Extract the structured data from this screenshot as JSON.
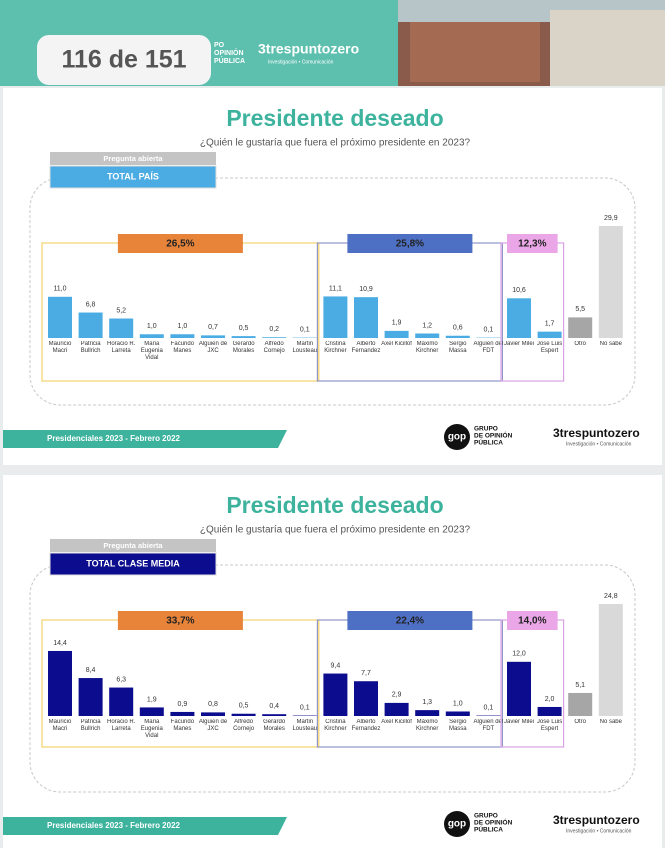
{
  "header": {
    "page_counter": "116 de 151",
    "logo_left": [
      "PO",
      "OPINIÓN",
      "PÚBLICA"
    ],
    "logo_right": "3trespuntozero",
    "logo_right_sub": "Investigación • Comunicación"
  },
  "chart_data": [
    {
      "type": "bar",
      "title": "Presidente deseado",
      "subtitle": "¿Quién le gustaría que fuera el próximo presidente en 2023?",
      "tag": "Pregunta abierta",
      "segment": "TOTAL PAÍS",
      "segment_color": "#4aace3",
      "groups": [
        {
          "total": {
            "value": 26.5,
            "label": "26,5%"
          },
          "total_color": "#e8833a",
          "frame_color": "#f3d36b",
          "color": "#4aace3",
          "categories": [
            "Mauricio Macri",
            "Patricia Bullrich",
            "Horacio R. Larreta",
            "Maria Eugenia Vidal",
            "Facundo Manes",
            "Alguien de JXC",
            "Gerardo Morales",
            "Alfredo Cornejo",
            "Martin Lousteau"
          ],
          "values": [
            11.0,
            6.8,
            5.2,
            1.0,
            1.0,
            0.7,
            0.5,
            0.2,
            0.1
          ],
          "value_labels": [
            "11,0",
            "6,8",
            "5,2",
            "1,0",
            "1,0",
            "0,7",
            "0,5",
            "0,2",
            "0,1"
          ]
        },
        {
          "total": {
            "value": 25.8,
            "label": "25,8%"
          },
          "total_color": "#4d6fc4",
          "frame_color": "#9096c9",
          "color": "#4aace3",
          "categories": [
            "Cristina Kirchner",
            "Alberto Fernandez",
            "Axel Kicillof",
            "Máximo Kirchner",
            "Sergio Massa",
            "Alguien del FDT"
          ],
          "values": [
            11.1,
            10.9,
            1.9,
            1.2,
            0.6,
            0.1
          ],
          "value_labels": [
            "11,1",
            "10,9",
            "1,9",
            "1,2",
            "0,6",
            "0,1"
          ]
        },
        {
          "total": {
            "value": 12.3,
            "label": "12,3%"
          },
          "total_color": "#eaa6e6",
          "frame_color": "#d9a3e3",
          "color": "#4aace3",
          "categories": [
            "Javier Milei",
            "Jose Luis Espert"
          ],
          "values": [
            10.6,
            1.7
          ],
          "value_labels": [
            "10,6",
            "1,7"
          ]
        },
        {
          "colors": [
            "#a6a6a6",
            "#d9d9d9"
          ],
          "categories": [
            "Otro",
            "No sabe"
          ],
          "values": [
            5.5,
            29.9
          ],
          "value_labels": [
            "5,5",
            "29,9"
          ]
        }
      ],
      "footer": "Presidenciales 2023 - Febrero 2022",
      "brand_icon": "gop",
      "brand_left": [
        "GRUPO",
        "DE OPINIÓN",
        "PÚBLICA"
      ],
      "brand_right": "3trespuntozero",
      "brand_right_sub": "Investigación • Comunicación"
    },
    {
      "type": "bar",
      "title": "Presidente deseado",
      "subtitle": "¿Quién le gustaría que fuera el próximo presidente en 2023?",
      "tag": "Pregunta abierta",
      "segment": "TOTAL CLASE MEDIA",
      "segment_color": "#0c0c8f",
      "groups": [
        {
          "total": {
            "value": 33.7,
            "label": "33,7%"
          },
          "total_color": "#e8833a",
          "frame_color": "#f3d36b",
          "color": "#0c0c8f",
          "categories": [
            "Mauricio Macri",
            "Patricia Bullrich",
            "Horacio R. Larreta",
            "Maria Eugenia Vidal",
            "Facundo Manes",
            "Alguien de JXC",
            "Alfredo Cornejo",
            "Gerardo Morales",
            "Martin Lousteau"
          ],
          "values": [
            14.4,
            8.4,
            6.3,
            1.9,
            0.9,
            0.8,
            0.5,
            0.4,
            0.1
          ],
          "value_labels": [
            "14,4",
            "8,4",
            "6,3",
            "1,9",
            "0,9",
            "0,8",
            "0,5",
            "0,4",
            "0,1"
          ]
        },
        {
          "total": {
            "value": 22.4,
            "label": "22,4%"
          },
          "total_color": "#4d6fc4",
          "frame_color": "#9096c9",
          "color": "#0c0c8f",
          "categories": [
            "Cristina Kirchner",
            "Alberto Fernandez",
            "Axel Kicillof",
            "Máximo Kirchner",
            "Sergio Massa",
            "Alguien del FDT"
          ],
          "values": [
            9.4,
            7.7,
            2.9,
            1.3,
            1.0,
            0.1
          ],
          "value_labels": [
            "9,4",
            "7,7",
            "2,9",
            "1,3",
            "1,0",
            "0,1"
          ]
        },
        {
          "total": {
            "value": 14.0,
            "label": "14,0%"
          },
          "total_color": "#eaa6e6",
          "frame_color": "#d9a3e3",
          "color": "#0c0c8f",
          "categories": [
            "Javier Milei",
            "Jose Luis Espert"
          ],
          "values": [
            12.0,
            2.0
          ],
          "value_labels": [
            "12,0",
            "2,0"
          ]
        },
        {
          "colors": [
            "#a6a6a6",
            "#d9d9d9"
          ],
          "categories": [
            "Otro",
            "No sabe"
          ],
          "values": [
            5.1,
            24.8
          ],
          "value_labels": [
            "5,1",
            "24,8"
          ]
        }
      ],
      "footer": "Presidenciales 2023 - Febrero 2022",
      "brand_icon": "gop",
      "brand_left": [
        "GRUPO",
        "DE OPINIÓN",
        "PÚBLICA"
      ],
      "brand_right": "3trespuntozero",
      "brand_right_sub": "Investigación • Comunicación"
    }
  ]
}
